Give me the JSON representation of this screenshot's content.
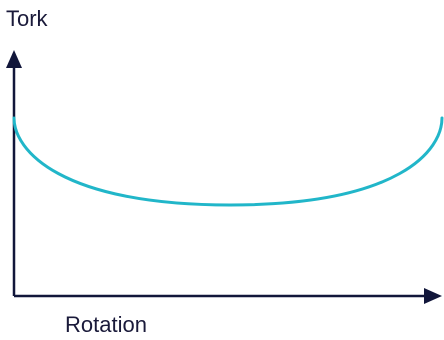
{
  "chart_data": {
    "type": "line",
    "title": "",
    "xlabel": "Rotation",
    "ylabel": "Tork",
    "grid": false,
    "legend": "none",
    "axis_color": "#11163a",
    "series": [
      {
        "color": "#21b6c9",
        "shape": "U-shaped curve: high at both ends, minimum in the middle"
      }
    ]
  }
}
